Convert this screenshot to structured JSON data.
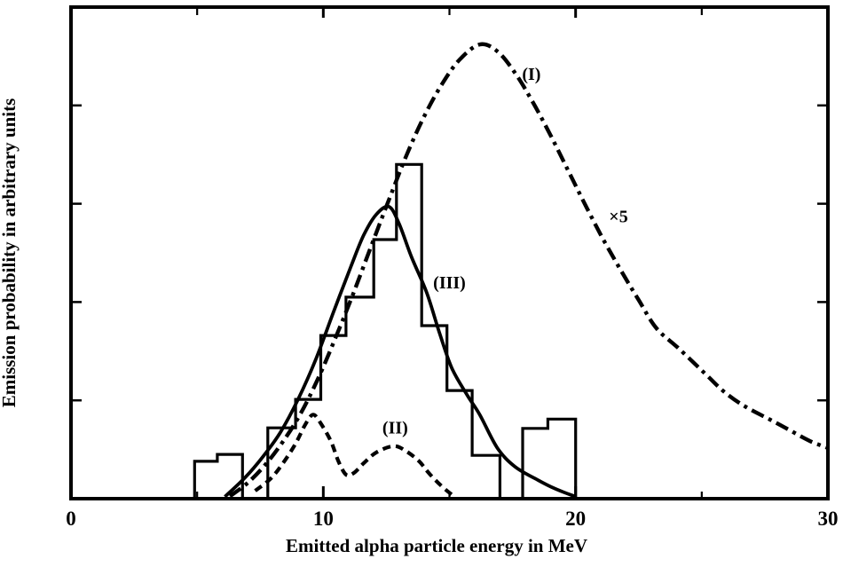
{
  "figure": {
    "background": "#ffffff",
    "ink": "#000000",
    "caption": ""
  },
  "chart_data": {
    "type": "line",
    "title": "",
    "xlabel": "Emitted alpha particle energy in MeV",
    "ylabel": "Emission probability in arbitrary units",
    "xlim": [
      0,
      30
    ],
    "ylim": [
      0,
      1
    ],
    "grid": false,
    "legend_position": "none-inline-labels",
    "x_tick_labels": [
      {
        "value": 0,
        "label": "0"
      },
      {
        "value": 10,
        "label": "10"
      },
      {
        "value": 20,
        "label": "20"
      },
      {
        "value": 30,
        "label": "30"
      }
    ],
    "x_major_ticks": [
      10,
      20
    ],
    "x_minor_ticks": [
      5,
      15,
      25
    ],
    "x_top_ticks": [
      5,
      10,
      15,
      20,
      25
    ],
    "y_minor_ticks": [
      0.2,
      0.4,
      0.6,
      0.8
    ],
    "y_tick_labels": [],
    "series": [
      {
        "name": "curve-I",
        "label": "(I)",
        "style": "dashdot",
        "note": "plotted ×5",
        "points": [
          [
            6.3,
            0.005
          ],
          [
            7.0,
            0.032
          ],
          [
            7.7,
            0.069
          ],
          [
            8.4,
            0.116
          ],
          [
            9.1,
            0.173
          ],
          [
            9.8,
            0.245
          ],
          [
            10.5,
            0.329
          ],
          [
            11.2,
            0.419
          ],
          [
            11.9,
            0.514
          ],
          [
            12.6,
            0.608
          ],
          [
            13.3,
            0.699
          ],
          [
            14.0,
            0.778
          ],
          [
            14.7,
            0.843
          ],
          [
            15.4,
            0.893
          ],
          [
            16.2,
            0.924
          ],
          [
            16.9,
            0.91
          ],
          [
            17.6,
            0.866
          ],
          [
            18.3,
            0.807
          ],
          [
            19.0,
            0.74
          ],
          [
            19.7,
            0.668
          ],
          [
            20.4,
            0.596
          ],
          [
            21.1,
            0.527
          ],
          [
            21.8,
            0.464
          ],
          [
            22.5,
            0.404
          ],
          [
            23.2,
            0.347
          ],
          [
            24.1,
            0.305
          ],
          [
            25.2,
            0.251
          ],
          [
            25.9,
            0.217
          ],
          [
            26.7,
            0.188
          ],
          [
            27.7,
            0.161
          ],
          [
            28.5,
            0.139
          ],
          [
            29.3,
            0.117
          ],
          [
            30.0,
            0.103
          ]
        ]
      },
      {
        "name": "curve-II",
        "label": "(II)",
        "style": "dashed",
        "points": [
          [
            7.3,
            0.016
          ],
          [
            7.9,
            0.04
          ],
          [
            8.4,
            0.072
          ],
          [
            8.9,
            0.112
          ],
          [
            9.3,
            0.152
          ],
          [
            9.6,
            0.171
          ],
          [
            9.9,
            0.153
          ],
          [
            10.3,
            0.117
          ],
          [
            10.6,
            0.076
          ],
          [
            10.9,
            0.049
          ],
          [
            11.2,
            0.052
          ],
          [
            11.6,
            0.072
          ],
          [
            12.1,
            0.094
          ],
          [
            12.8,
            0.107
          ],
          [
            13.3,
            0.096
          ],
          [
            13.8,
            0.076
          ],
          [
            14.2,
            0.051
          ],
          [
            14.7,
            0.025
          ],
          [
            15.1,
            0.008
          ]
        ]
      },
      {
        "name": "curve-III",
        "label": "(III)",
        "style": "solid",
        "points": [
          [
            6.1,
            0.004
          ],
          [
            6.9,
            0.043
          ],
          [
            7.6,
            0.085
          ],
          [
            8.3,
            0.135
          ],
          [
            9.0,
            0.202
          ],
          [
            9.7,
            0.283
          ],
          [
            10.4,
            0.379
          ],
          [
            11.1,
            0.473
          ],
          [
            11.6,
            0.536
          ],
          [
            12.1,
            0.578
          ],
          [
            12.6,
            0.594
          ],
          [
            13.0,
            0.56
          ],
          [
            13.5,
            0.491
          ],
          [
            14.1,
            0.419
          ],
          [
            14.6,
            0.338
          ],
          [
            15.1,
            0.265
          ],
          [
            15.7,
            0.211
          ],
          [
            16.2,
            0.171
          ],
          [
            16.9,
            0.103
          ],
          [
            17.6,
            0.065
          ],
          [
            18.5,
            0.038
          ],
          [
            19.2,
            0.02
          ],
          [
            20.0,
            0.004
          ]
        ]
      },
      {
        "name": "histogram",
        "label": "",
        "style": "histogram",
        "bins": [
          [
            4.9,
            5.8,
            0.076
          ],
          [
            5.8,
            6.8,
            0.09
          ],
          [
            6.8,
            7.8,
            0.0
          ],
          [
            7.8,
            8.9,
            0.144
          ],
          [
            8.9,
            9.9,
            0.202
          ],
          [
            9.9,
            10.9,
            0.332
          ],
          [
            10.9,
            12.0,
            0.41
          ],
          [
            12.0,
            12.9,
            0.527
          ],
          [
            12.9,
            13.9,
            0.68
          ],
          [
            13.9,
            14.9,
            0.352
          ],
          [
            14.9,
            15.9,
            0.22
          ],
          [
            15.9,
            17.0,
            0.088
          ],
          [
            17.0,
            17.9,
            0.0
          ],
          [
            17.9,
            18.9,
            0.143
          ],
          [
            18.9,
            20.0,
            0.162
          ]
        ]
      }
    ],
    "annotations": [
      {
        "text": "(I)",
        "x": 18.25,
        "y": 0.865
      },
      {
        "text": "×5",
        "x": 21.7,
        "y": 0.575
      },
      {
        "text": "(III)",
        "x": 15.0,
        "y": 0.44
      },
      {
        "text": "(II)",
        "x": 12.85,
        "y": 0.145
      }
    ]
  }
}
